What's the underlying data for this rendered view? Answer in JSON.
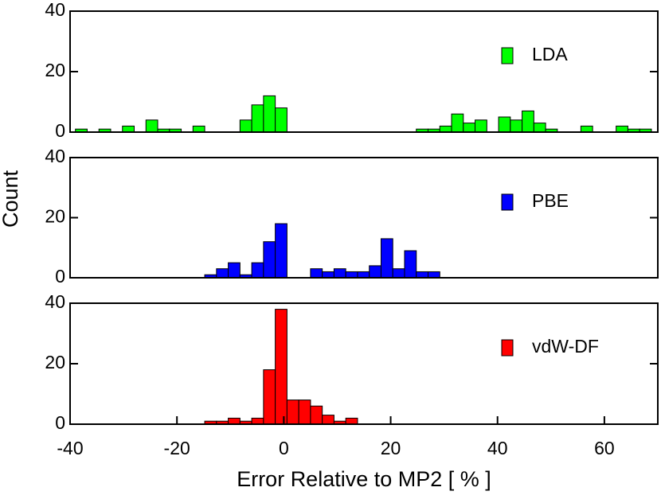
{
  "chart_data": [
    {
      "type": "histogram",
      "name": "LDA",
      "color": "#00ff00",
      "bins": [
        -39.0,
        -36.8,
        -34.6,
        -32.4,
        -30.2,
        -28.0,
        -25.8,
        -23.6,
        -21.4,
        -19.2,
        -17.0,
        -14.8,
        -12.6,
        -10.4,
        -8.2,
        -6.0,
        -3.8,
        -1.6,
        0.6,
        2.8,
        5.0,
        7.2,
        9.4,
        11.6,
        13.8,
        16.0,
        18.2,
        20.4,
        22.6,
        24.8,
        27.0,
        29.2,
        31.4,
        33.6,
        35.8,
        38.0,
        40.2,
        42.4,
        44.6,
        46.8,
        49.0,
        51.2,
        53.4,
        55.6,
        57.8,
        60.0,
        62.2,
        64.4,
        66.6,
        68.8
      ],
      "counts": [
        1,
        0,
        1,
        0,
        2,
        0,
        4,
        1,
        1,
        0,
        2,
        0,
        0,
        0,
        4,
        9,
        12,
        8,
        0,
        0,
        0,
        0,
        0,
        0,
        0,
        0,
        0,
        0,
        0,
        1,
        1,
        2,
        6,
        3,
        4,
        0,
        5,
        4,
        7,
        3,
        1,
        0,
        0,
        2,
        0,
        0,
        2,
        1,
        1
      ],
      "xlim": [
        -40,
        70
      ],
      "ylim": [
        0,
        40
      ],
      "yticks": [
        0,
        20,
        40
      ]
    },
    {
      "type": "histogram",
      "name": "PBE",
      "color": "#0000ff",
      "ylabel": "Count",
      "bins": [
        -14.8,
        -12.6,
        -10.4,
        -8.2,
        -6.0,
        -3.8,
        -1.6,
        0.6,
        2.8,
        5.0,
        7.2,
        9.4,
        11.6,
        13.8,
        16.0,
        18.2,
        20.4,
        22.6,
        24.8,
        27.0,
        29.2
      ],
      "counts": [
        1,
        3,
        5,
        1,
        5,
        12,
        18,
        0,
        0,
        3,
        2,
        3,
        2,
        2,
        4,
        13,
        3,
        9,
        2,
        2
      ],
      "xlim": [
        -40,
        70
      ],
      "ylim": [
        0,
        40
      ],
      "yticks": [
        0,
        20,
        40
      ]
    },
    {
      "type": "histogram",
      "name": "vdW-DF",
      "color": "#ff0000",
      "xlabel": "Error Relative to MP2 [ % ]",
      "bins": [
        -14.8,
        -12.6,
        -10.4,
        -8.2,
        -6.0,
        -3.8,
        -1.6,
        0.6,
        2.8,
        5.0,
        7.2,
        9.4,
        11.6,
        13.8
      ],
      "counts": [
        1,
        1,
        2,
        1,
        2,
        18,
        38,
        8,
        8,
        6,
        3,
        1,
        2
      ],
      "xlim": [
        -40,
        70
      ],
      "ylim": [
        0,
        40
      ],
      "yticks": [
        0,
        20,
        40
      ],
      "xticks": [
        -40,
        -20,
        0,
        20,
        40,
        60
      ]
    }
  ]
}
